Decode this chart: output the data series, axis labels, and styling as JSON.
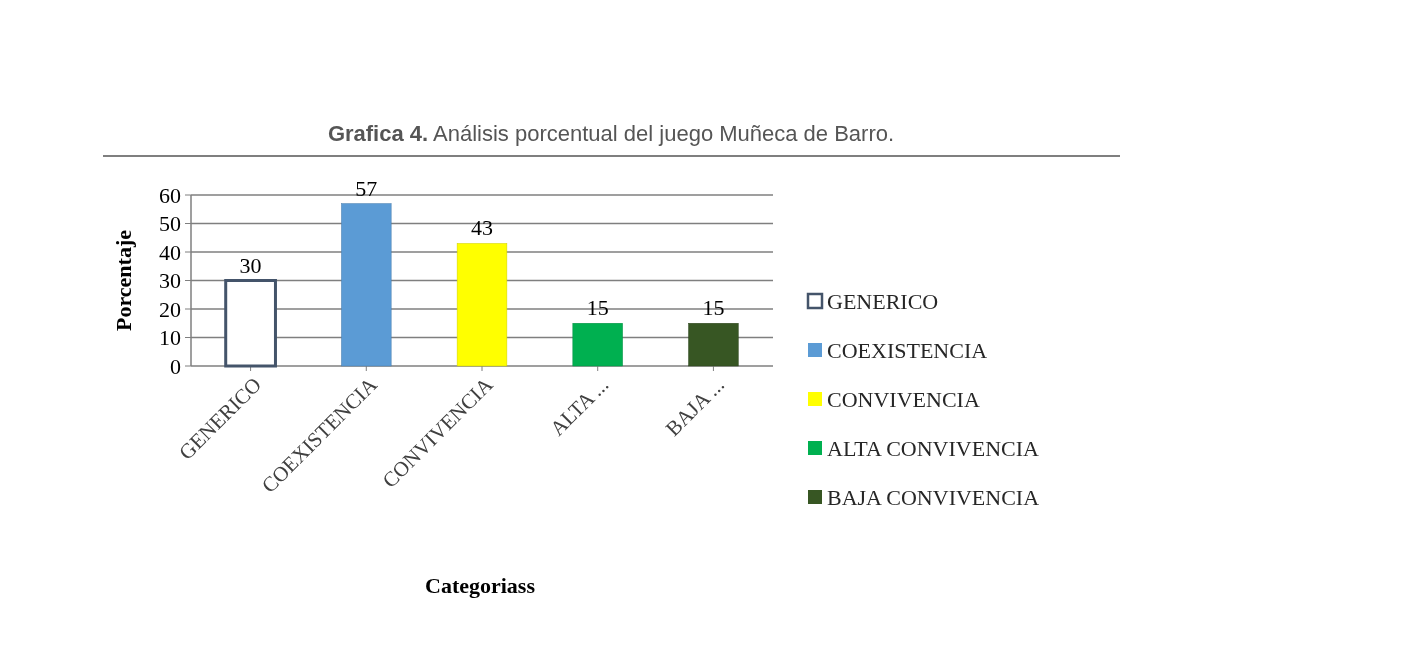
{
  "chart_data": {
    "type": "bar",
    "title": "Grafica 4. Análisis porcentual del juego Muñeca de Barro.",
    "xlabel": "Categoriass",
    "ylabel": "Porcentaje",
    "categories": [
      "GENERICO",
      "COEXISTENCIA",
      "CONVIVENCIA",
      "ALTA ...",
      "BAJA ..."
    ],
    "series": [
      {
        "name": "GENERICO",
        "color": "#ffffff",
        "values": [
          30,
          null,
          null,
          null,
          null
        ]
      },
      {
        "name": "COEXISTENCIA",
        "color": "#5b9bd5",
        "values": [
          null,
          57,
          null,
          null,
          null
        ]
      },
      {
        "name": "CONVIVENCIA",
        "color": "#ffff00",
        "values": [
          null,
          null,
          43,
          null,
          null
        ]
      },
      {
        "name": "ALTA CONVIVENCIA",
        "color": "#00b050",
        "values": [
          null,
          null,
          null,
          15,
          null
        ]
      },
      {
        "name": "BAJA CONVIVENCIA",
        "color": "#375623",
        "values": [
          null,
          null,
          null,
          null,
          15
        ]
      }
    ],
    "ylim": [
      0,
      60
    ],
    "yticks": [
      0,
      10,
      20,
      30,
      40,
      50,
      60
    ],
    "grid": "y",
    "legend": "right",
    "data_labels": true
  }
}
